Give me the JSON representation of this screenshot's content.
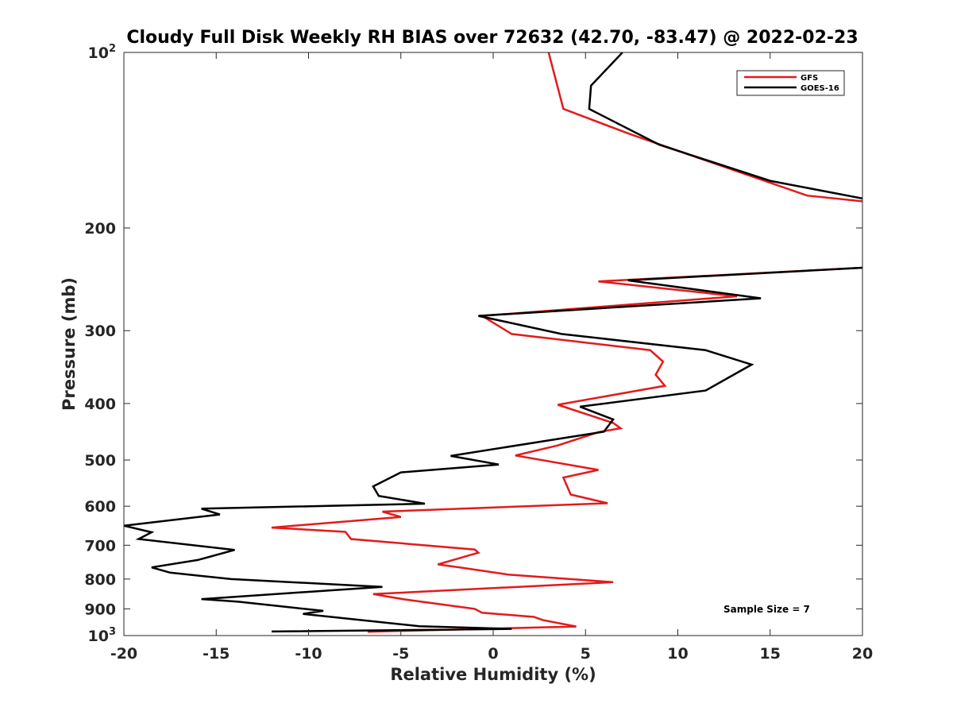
{
  "chart_data": {
    "type": "line",
    "title": "Cloudy Full Disk Weekly RH BIAS over 72632 (42.70, -83.47) @ 2022-02-23",
    "xlabel": "Relative Humidity (%)",
    "ylabel": "Pressure (mb)",
    "xlim": [
      -20,
      20
    ],
    "ylim": [
      100,
      1000
    ],
    "y_scale": "log",
    "y_reversed": true,
    "grid": false,
    "legend_position": "top-right",
    "x_ticks": [
      "-20",
      "-15",
      "-10",
      "-5",
      "0",
      "5",
      "10",
      "15",
      "20"
    ],
    "y_ticks": [
      {
        "value": 100,
        "base": "10",
        "exp": "2"
      },
      {
        "value": 200,
        "label": "200"
      },
      {
        "value": 300,
        "label": "300"
      },
      {
        "value": 400,
        "label": "400"
      },
      {
        "value": 500,
        "label": "500"
      },
      {
        "value": 600,
        "label": "600"
      },
      {
        "value": 700,
        "label": "700"
      },
      {
        "value": 800,
        "label": "800"
      },
      {
        "value": 900,
        "label": "900"
      },
      {
        "value": 1000,
        "base": "10",
        "exp": "3"
      }
    ],
    "annotation": "Sample Size = 7",
    "series": [
      {
        "name": "GFS",
        "color": "#e31a1c",
        "points": [
          [
            3.0,
            100
          ],
          [
            3.8,
            125
          ],
          [
            7.4,
            138
          ],
          [
            17.0,
            176
          ],
          [
            20.0,
            180
          ],
          [
            null,
            null
          ],
          [
            20.0,
            234
          ],
          [
            5.7,
            247
          ],
          [
            13.2,
            262
          ],
          [
            -0.6,
            283
          ],
          [
            1.0,
            304
          ],
          [
            8.5,
            324
          ],
          [
            9.2,
            339
          ],
          [
            8.8,
            357
          ],
          [
            9.3,
            373
          ],
          [
            3.5,
            402
          ],
          [
            6.5,
            432
          ],
          [
            6.9,
            441
          ],
          [
            5.7,
            448
          ],
          [
            3.5,
            472
          ],
          [
            1.2,
            491
          ],
          [
            5.7,
            520
          ],
          [
            3.8,
            536
          ],
          [
            4.2,
            573
          ],
          [
            6.2,
            593
          ],
          [
            -6.0,
            613
          ],
          [
            -5.0,
            626
          ],
          [
            -12.0,
            653
          ],
          [
            -8.0,
            664
          ],
          [
            -7.7,
            683
          ],
          [
            -1.0,
            712
          ],
          [
            -0.8,
            721
          ],
          [
            -3.0,
            755
          ],
          [
            -1.7,
            765
          ],
          [
            0.8,
            786
          ],
          [
            6.5,
            810
          ],
          [
            -6.5,
            849
          ],
          [
            -4.8,
            867
          ],
          [
            -1.0,
            900
          ],
          [
            -0.6,
            914
          ],
          [
            2.2,
            929
          ],
          [
            2.7,
            941
          ],
          [
            4.5,
            965
          ],
          [
            -6.8,
            985
          ]
        ]
      },
      {
        "name": "GOES-16",
        "color": "#000000",
        "points": [
          [
            7.0,
            100
          ],
          [
            5.3,
            114
          ],
          [
            5.2,
            125
          ],
          [
            9.0,
            144
          ],
          [
            15.0,
            166
          ],
          [
            20.0,
            178
          ],
          [
            null,
            null
          ],
          [
            20.0,
            234
          ],
          [
            7.3,
            246
          ],
          [
            14.5,
            264
          ],
          [
            -0.8,
            283
          ],
          [
            3.7,
            304
          ],
          [
            11.5,
            324
          ],
          [
            14.0,
            343
          ],
          [
            11.5,
            380
          ],
          [
            4.7,
            405
          ],
          [
            6.5,
            426
          ],
          [
            6.0,
            447
          ],
          [
            -2.3,
            492
          ],
          [
            0.3,
            509
          ],
          [
            -5.0,
            525
          ],
          [
            -6.5,
            555
          ],
          [
            -6.2,
            576
          ],
          [
            -3.7,
            594
          ],
          [
            -15.8,
            606
          ],
          [
            -14.8,
            620
          ],
          [
            -20.0,
            648
          ],
          [
            -18.5,
            665
          ],
          [
            -19.2,
            683
          ],
          [
            -14.0,
            713
          ],
          [
            -16.0,
            742
          ],
          [
            -18.5,
            764
          ],
          [
            -17.5,
            780
          ],
          [
            -14.2,
            800
          ],
          [
            -6.0,
            825
          ],
          [
            -15.8,
            866
          ],
          [
            -13.8,
            875
          ],
          [
            -9.2,
            907
          ],
          [
            -10.3,
            918
          ],
          [
            -4.0,
            964
          ],
          [
            1.0,
            974
          ],
          [
            -12.0,
            984
          ]
        ]
      }
    ]
  }
}
